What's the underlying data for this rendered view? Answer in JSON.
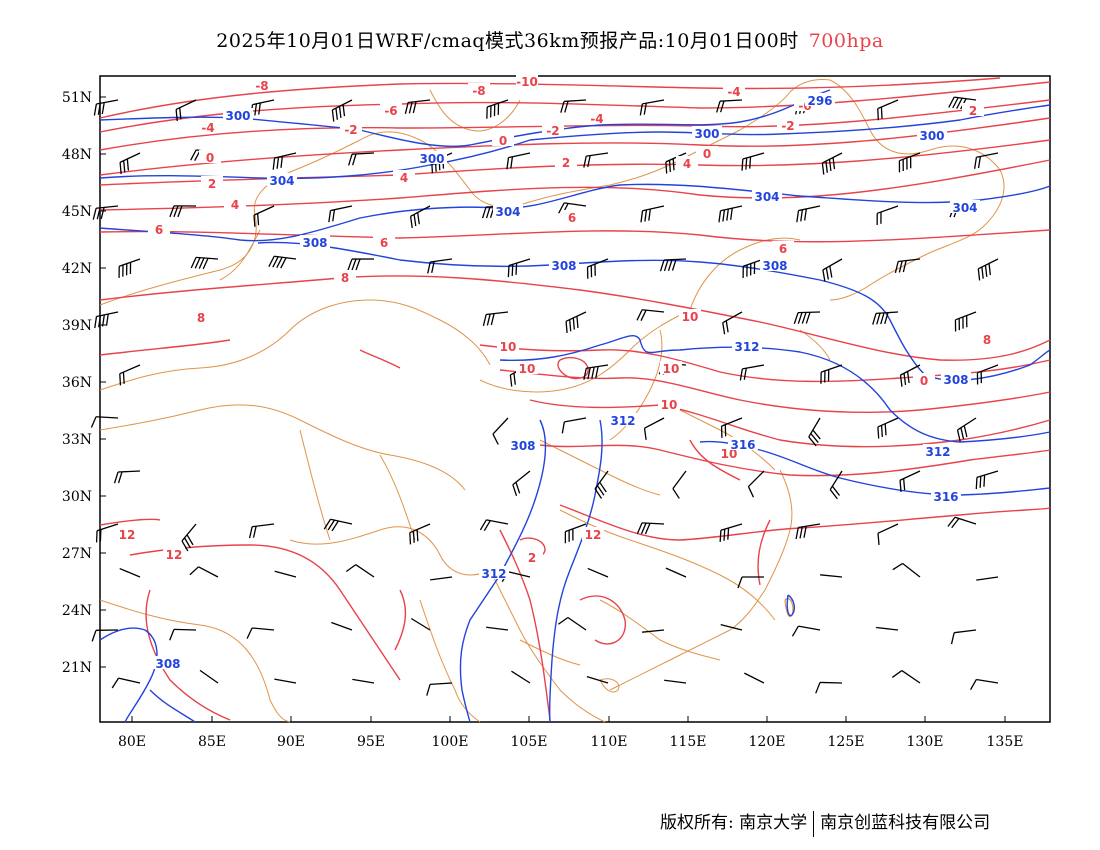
{
  "title": {
    "main": "2025年10月01日WRF/cmaq模式36km预报产品:10月01日00时",
    "level": "700hpa"
  },
  "axes": {
    "lat_labels": [
      "51N",
      "48N",
      "45N",
      "42N",
      "39N",
      "36N",
      "33N",
      "30N",
      "27N",
      "24N",
      "21N"
    ],
    "lon_labels": [
      "80E",
      "85E",
      "90E",
      "95E",
      "100E",
      "105E",
      "110E",
      "115E",
      "120E",
      "125E",
      "130E",
      "135E"
    ]
  },
  "colors": {
    "temperature": "#e8424a",
    "geopotential": "#2244dd",
    "border": "#e0944a",
    "wind": "#000000"
  },
  "temperature_labels": [
    "-10",
    "-8",
    "-8",
    "-6",
    "-6",
    "-4",
    "-4",
    "-4",
    "-2",
    "-2",
    "-2",
    "0",
    "0",
    "0",
    "2",
    "2",
    "2",
    "4",
    "4",
    "4",
    "6",
    "6",
    "6",
    "6",
    "8",
    "8",
    "10",
    "10",
    "10",
    "10",
    "10",
    "10",
    "12",
    "12",
    "12",
    "2",
    "0",
    "8"
  ],
  "geopotential_labels": [
    "300",
    "300",
    "300",
    "300",
    "296",
    "304",
    "304",
    "304",
    "304",
    "308",
    "308",
    "308",
    "308",
    "312",
    "312",
    "312",
    "316",
    "316",
    "308",
    "308",
    "312"
  ],
  "footer": {
    "copyright": "版权所有: 南京大学",
    "company": "南京创蓝科技有限公司"
  }
}
